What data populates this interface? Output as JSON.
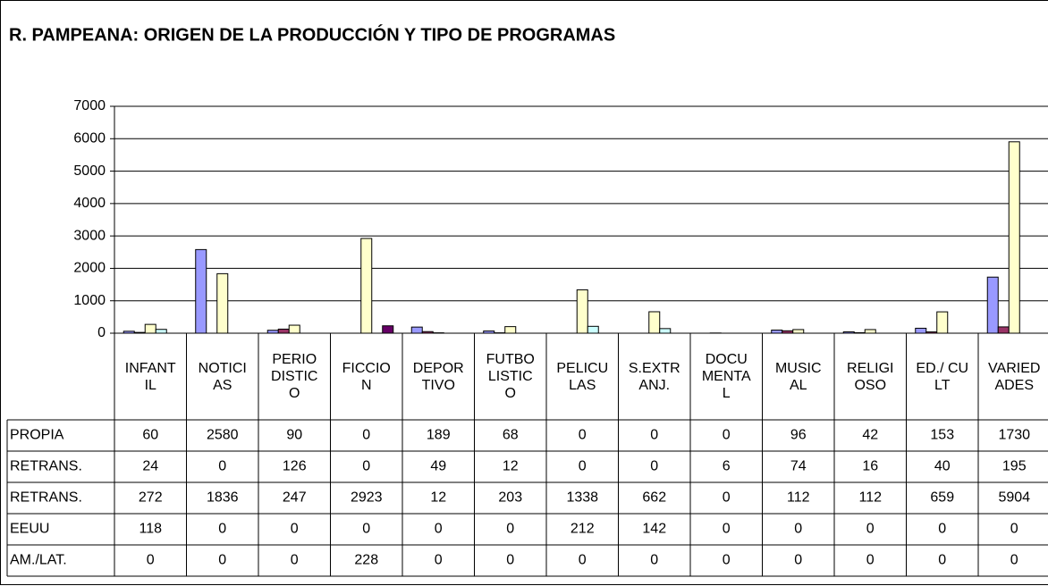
{
  "chart_data": {
    "type": "bar",
    "title": "R. PAMPEANA: ORIGEN DE LA PRODUCCIÓN Y TIPO DE PROGRAMAS",
    "categories": [
      "INFANTIL",
      "NOTICIAS",
      "PERIODISTICO",
      "FICCION",
      "DEPORTIVO",
      "FUTBOLISTICO",
      "PELICULAS",
      "S.EXTRANJ.",
      "DOCUMENTAL",
      "MUSICAL",
      "RELIGIOSO",
      "ED./ CULT",
      "VARIEDADES"
    ],
    "series": [
      {
        "name": "PROPIA",
        "color": "#9999ff",
        "values": [
          60,
          2580,
          90,
          0,
          189,
          68,
          0,
          0,
          0,
          96,
          42,
          153,
          1730
        ]
      },
      {
        "name": "RETRANS.",
        "color": "#993366",
        "values": [
          24,
          0,
          126,
          0,
          49,
          12,
          0,
          0,
          6,
          74,
          16,
          40,
          195
        ]
      },
      {
        "name": "RETRANS.",
        "color": "#ffffcc",
        "values": [
          272,
          1836,
          247,
          2923,
          12,
          203,
          1338,
          662,
          0,
          112,
          112,
          659,
          5904
        ]
      },
      {
        "name": "EEUU",
        "color": "#ccffff",
        "values": [
          118,
          0,
          0,
          0,
          0,
          0,
          212,
          142,
          0,
          0,
          0,
          0,
          0
        ]
      },
      {
        "name": "AM./LAT.",
        "color": "#660066",
        "values": [
          0,
          0,
          0,
          228,
          0,
          0,
          0,
          0,
          0,
          0,
          0,
          0,
          0
        ]
      }
    ],
    "ylim": [
      0,
      7000
    ],
    "yticks": [
      0,
      1000,
      2000,
      3000,
      4000,
      5000,
      6000,
      7000
    ],
    "grid": true
  }
}
